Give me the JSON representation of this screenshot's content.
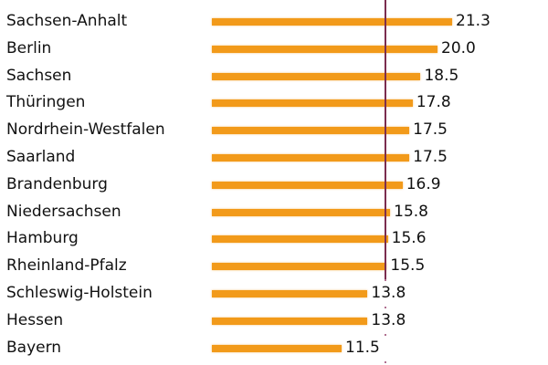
{
  "chart_data": {
    "type": "bar",
    "orientation": "horizontal",
    "title": "",
    "xlabel": "",
    "ylabel": "",
    "categories": [
      "Sachsen-Anhalt",
      "Berlin",
      "Sachsen",
      "Thüringen",
      "Nordrhein-Westfalen",
      "Saarland",
      "Brandenburg",
      "Niedersachsen",
      "Hamburg",
      "Rheinland-Pfalz",
      "Schleswig-Holstein",
      "Hessen",
      "Bayern"
    ],
    "values": [
      21.3,
      20.0,
      18.5,
      17.8,
      17.5,
      17.5,
      16.9,
      15.8,
      15.6,
      15.5,
      13.8,
      13.8,
      11.5
    ],
    "value_labels": [
      "21.3",
      "20.0",
      "18.5",
      "17.8",
      "17.5",
      "17.5",
      "16.9",
      "15.8",
      "15.6",
      "15.5",
      "13.8",
      "13.8",
      "11.5"
    ],
    "reference_line": {
      "value": 15.4,
      "style": "solid-then-dotted"
    },
    "grid": false,
    "legend": null
  },
  "colors": {
    "bar": "#f29a1a",
    "reference_line": "#7b2d4f",
    "text": "#111111",
    "background": "#ffffff"
  }
}
